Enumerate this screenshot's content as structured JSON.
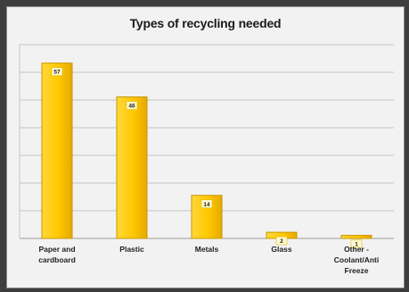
{
  "chart_data": {
    "type": "bar",
    "title": "Types of recycling needed",
    "categories": [
      [
        "Paper and",
        "cardboard"
      ],
      [
        "Plastic"
      ],
      [
        "Metals"
      ],
      [
        "Glass"
      ],
      [
        "Other -",
        "Coolant/Anti",
        "Freeze"
      ]
    ],
    "values": [
      57,
      46,
      14,
      2,
      1
    ],
    "data_labels": [
      "57",
      "46",
      "14",
      "2",
      "1"
    ],
    "ylim": [
      0,
      63
    ],
    "grid": true,
    "legend": "none",
    "bar_color": "#ffc800",
    "bar_edge_color": "#c99600",
    "label_box_color": "#fff8cc"
  }
}
